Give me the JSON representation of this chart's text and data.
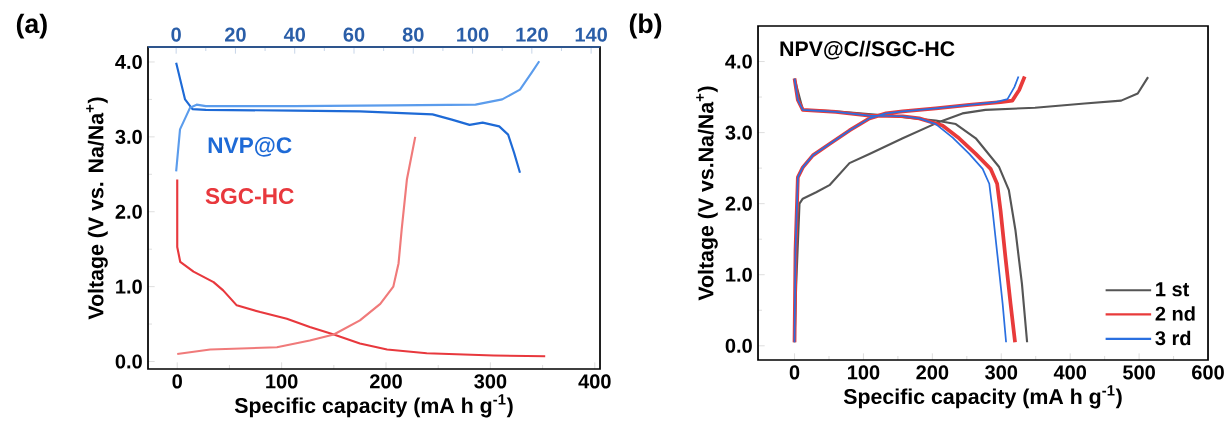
{
  "chart_data": [
    {
      "type": "line",
      "xlabel": "Specific capacity (mA h g$^{-1}$)",
      "ylabel": "Voltage (V vs. Na/Na$^{+}$)",
      "xlim": [
        -28,
        405
      ],
      "xticks": [
        0,
        100,
        200,
        300,
        400
      ],
      "x2lim": [
        -9.5,
        143
      ],
      "x2ticks": [
        0,
        20,
        40,
        60,
        80,
        100,
        120,
        140
      ],
      "ylim": [
        -0.1,
        4.2
      ],
      "yticks": [
        {
          "value": 0,
          "label": "0.0"
        },
        {
          "value": 1,
          "label": "1.0"
        },
        {
          "value": 2,
          "label": "2.0"
        },
        {
          "value": 3,
          "label": "3.0"
        },
        {
          "value": 4,
          "label": "4.0"
        }
      ],
      "legend": false,
      "marker": "none",
      "line_style": "solid",
      "annotations": [
        "(a)"
      ],
      "series": [
        {
          "name": "NVP@C",
          "axis": "x2",
          "color": "#1e6ad6",
          "x": [
            0,
            3,
            5.5,
            10,
            40,
            62,
            86.5,
            93,
            99,
            103.4,
            109,
            112,
            114,
            116
          ],
          "values": [
            3.99,
            3.5,
            3.37,
            3.36,
            3.35,
            3.34,
            3.3,
            3.23,
            3.16,
            3.19,
            3.14,
            3.03,
            2.79,
            2.52
          ]
        },
        {
          "axis": "x2",
          "color": "#5b9cec",
          "x": [
            0,
            1.3,
            4.7,
            6.9,
            10,
            40,
            73,
            101,
            110,
            116,
            120,
            122.5
          ],
          "values": [
            2.54,
            3.1,
            3.39,
            3.43,
            3.41,
            3.41,
            3.42,
            3.43,
            3.5,
            3.63,
            3.86,
            4.01
          ]
        },
        {
          "name": "SGC-HC",
          "color": "#e8383d",
          "x": [
            0,
            0,
            2.9,
            15.6,
            34.8,
            44,
            57,
            79.5,
            105,
            127,
            150,
            175,
            201,
            239,
            303,
            352.5
          ],
          "values": [
            2.43,
            1.53,
            1.33,
            1.2,
            1.06,
            0.95,
            0.75,
            0.66,
            0.57,
            0.46,
            0.36,
            0.24,
            0.16,
            0.11,
            0.08,
            0.07
          ]
        },
        {
          "color": "#f07a7a",
          "x": [
            0,
            31.6,
            95.5,
            127,
            150,
            175,
            194.5,
            207,
            212,
            215,
            220,
            228
          ],
          "values": [
            0.1,
            0.16,
            0.19,
            0.28,
            0.36,
            0.55,
            0.77,
            1.0,
            1.31,
            1.76,
            2.43,
            3.0
          ]
        }
      ]
    },
    {
      "type": "line",
      "xlabel": "Specific capacity (mA h g$^{-1}$)",
      "ylabel": "Voltage (V vs.Na/Na$^{+}$)",
      "xlim": [
        -53,
        600
      ],
      "xticks": [
        0,
        100,
        200,
        300,
        400,
        500,
        600
      ],
      "ylim": [
        -0.2,
        4.5
      ],
      "yticks": [
        {
          "value": 0,
          "label": "0.0"
        },
        {
          "value": 1,
          "label": "1.0"
        },
        {
          "value": 2,
          "label": "2.0"
        },
        {
          "value": 3,
          "label": "3.0"
        },
        {
          "value": 4,
          "label": "4.0"
        }
      ],
      "legend": "bottom right",
      "marker": "none",
      "line_style": "solid",
      "annotations": [
        "(b)",
        "NPV@C//SGC-HC"
      ],
      "series": [
        {
          "name": "1 st",
          "color": "#555555",
          "x": [
            0,
            2.4,
            7.2,
            12,
            31.4,
            50.7,
            79.7,
            108.7,
            157,
            205,
            243.6,
            277,
            349,
            421,
            474,
            498,
            513,
            null,
            0,
            12,
            60,
            133,
            205,
            234,
            263,
            296.6,
            311,
            320.5,
            330,
            337.5
          ],
          "values": [
            0.05,
            0.87,
            2.0,
            2.07,
            2.16,
            2.26,
            2.57,
            2.7,
            2.92,
            3.13,
            3.27,
            3.32,
            3.35,
            3.41,
            3.45,
            3.55,
            3.78,
            null,
            3.76,
            3.32,
            3.3,
            3.24,
            3.17,
            3.12,
            2.92,
            2.52,
            2.19,
            1.63,
            0.87,
            0.05
          ]
        },
        {
          "name": "2 nd",
          "color": "#e83a3a",
          "x": [
            0,
            1.4,
            4.8,
            12,
            26.6,
            50.7,
            79.7,
            108.7,
            132.9,
            157,
            205,
            253.6,
            299,
            316,
            326,
            334,
            null,
            0,
            4.8,
            12,
            60,
            108.7,
            157,
            181,
            214.7,
            238.8,
            263,
            284.5,
            294,
            299,
            306,
            313.5,
            320
          ],
          "values": [
            0.05,
            1.34,
            2.37,
            2.51,
            2.68,
            2.84,
            3.03,
            3.2,
            3.27,
            3.3,
            3.34,
            3.39,
            3.43,
            3.45,
            3.6,
            3.79,
            null,
            3.76,
            3.46,
            3.32,
            3.29,
            3.24,
            3.23,
            3.2,
            3.1,
            2.92,
            2.7,
            2.49,
            2.28,
            1.9,
            1.25,
            0.59,
            0.05
          ]
        },
        {
          "name": "3 rd",
          "color": "#2a6fe0",
          "x": [
            0,
            1.4,
            4.8,
            12,
            26.6,
            50.7,
            79.7,
            108.7,
            132.9,
            157,
            205,
            253.6,
            292,
            309,
            319,
            325,
            null,
            0,
            4.8,
            12,
            60,
            108.7,
            157,
            181,
            205,
            229.5,
            253.6,
            273,
            282.6,
            287.4,
            294.7,
            302,
            307
          ],
          "values": [
            0.05,
            1.34,
            2.37,
            2.51,
            2.68,
            2.84,
            3.03,
            3.2,
            3.27,
            3.3,
            3.34,
            3.39,
            3.43,
            3.47,
            3.64,
            3.79,
            null,
            3.76,
            3.46,
            3.32,
            3.29,
            3.24,
            3.23,
            3.2,
            3.12,
            2.93,
            2.7,
            2.49,
            2.28,
            1.9,
            1.25,
            0.59,
            0.05
          ]
        }
      ]
    }
  ]
}
